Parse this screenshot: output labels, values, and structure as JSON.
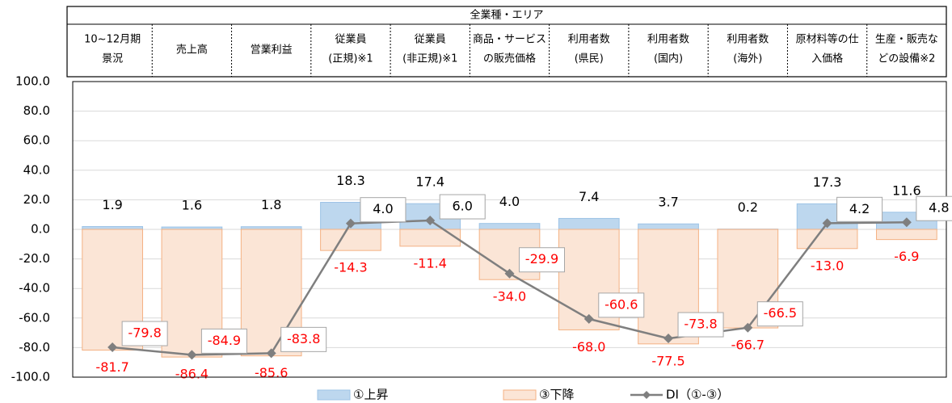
{
  "chart_data": {
    "type": "bar-line",
    "table_title": "全業種・エリア",
    "categories": [
      [
        "10~12月期",
        "景況"
      ],
      [
        "売上高"
      ],
      [
        "営業利益"
      ],
      [
        "従業員",
        "(正規)※1"
      ],
      [
        "従業員",
        "(非正規)※1"
      ],
      [
        "商品・サービス",
        "の販売価格"
      ],
      [
        "利用者数",
        "(県民)"
      ],
      [
        "利用者数",
        "(国内)"
      ],
      [
        "利用者数",
        "(海外)"
      ],
      [
        "原材料等の仕",
        "入価格"
      ],
      [
        "生産・販売な",
        "どの設備※2"
      ]
    ],
    "series": [
      {
        "name": "①上昇",
        "kind": "bar",
        "color": "#bdd7ee",
        "values": [
          1.9,
          1.6,
          1.8,
          18.3,
          17.4,
          4.0,
          7.4,
          3.7,
          0.2,
          17.3,
          11.6
        ],
        "value_labels": [
          "1.9",
          "1.6",
          "1.8",
          "18.3",
          "17.4",
          "4.0",
          "7.4",
          "3.7",
          "0.2",
          "17.3",
          "11.6"
        ]
      },
      {
        "name": "③下降",
        "kind": "bar",
        "color": "#fbe5d6",
        "values": [
          -81.7,
          -86.4,
          -85.6,
          -14.3,
          -11.4,
          -34.0,
          -68.0,
          -77.5,
          -66.7,
          -13.0,
          -6.9
        ],
        "value_labels": [
          "-81.7",
          "-86.4",
          "-85.6",
          "-14.3",
          "-11.4",
          "-34.0",
          "-68.0",
          "-77.5",
          "-66.7",
          "-13.0",
          "-6.9"
        ]
      },
      {
        "name": "DI（①-③）",
        "kind": "line",
        "color": "#7f7f7f",
        "values": [
          -79.8,
          -84.9,
          -83.8,
          4.0,
          6.0,
          -29.9,
          -60.6,
          -73.8,
          -66.5,
          4.2,
          4.8
        ],
        "value_labels": [
          "-79.8",
          "-84.9",
          "-83.8",
          "4.0",
          "6.0",
          "-29.9",
          "-60.6",
          "-73.8",
          "-66.5",
          "4.2",
          "4.8"
        ]
      }
    ],
    "ylim": [
      -100,
      100
    ],
    "yticks": [
      {
        "value": -100,
        "label": "-100.0"
      },
      {
        "value": -80,
        "label": "-80.0"
      },
      {
        "value": -60,
        "label": "-60.0"
      },
      {
        "value": -40,
        "label": "-40.0"
      },
      {
        "value": -20,
        "label": "-20.0"
      },
      {
        "value": 0,
        "label": "0.0"
      },
      {
        "value": 20,
        "label": "20.0"
      },
      {
        "value": 40,
        "label": "40.0"
      },
      {
        "value": 60,
        "label": "60.0"
      },
      {
        "value": 80,
        "label": "80.0"
      },
      {
        "value": 100,
        "label": "100.0"
      }
    ],
    "grid": true
  }
}
